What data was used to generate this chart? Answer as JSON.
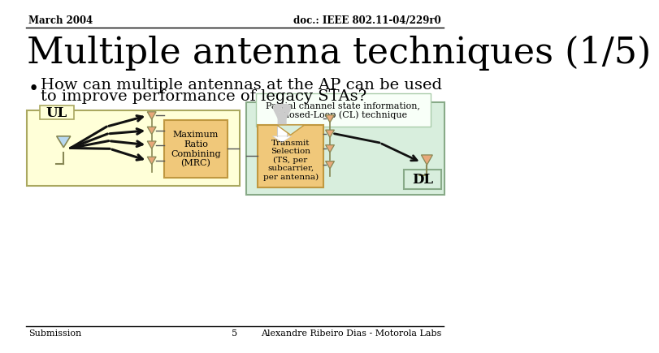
{
  "bg_color": "#ffffff",
  "header_left": "March 2004",
  "header_right": "doc.: IEEE 802.11-04/229r0",
  "title": "Multiple antenna techniques (1/5)",
  "bullet_line1": "How can multiple antennas at the AP can be used",
  "bullet_line2": "to improve performance of legacy STAs?",
  "footer_left": "Submission",
  "footer_center": "5",
  "footer_right": "Alexandre Ribeiro Dias - Motorola Labs",
  "ul_box_color": "#ffffd8",
  "ul_box_edge": "#aaa860",
  "mrc_box_color": "#f0c87a",
  "mrc_box_edge": "#c09840",
  "cl_box_color": "#d8eedd",
  "cl_box_edge": "#88aa88",
  "ts_box_color": "#f0c87a",
  "ts_box_edge": "#c09840",
  "dl_box_color": "#d8eedd",
  "dl_box_edge": "#88aa88",
  "info_box_color": "#f8fff8",
  "info_box_edge": "#aaccaa",
  "antenna_fill": "#e8a87a",
  "antenna_edge": "#888855",
  "arrow_color": "#111111",
  "line_color": "#555555",
  "header_font": 8.5,
  "title_font": 32,
  "bullet_font": 14,
  "footer_font": 8
}
